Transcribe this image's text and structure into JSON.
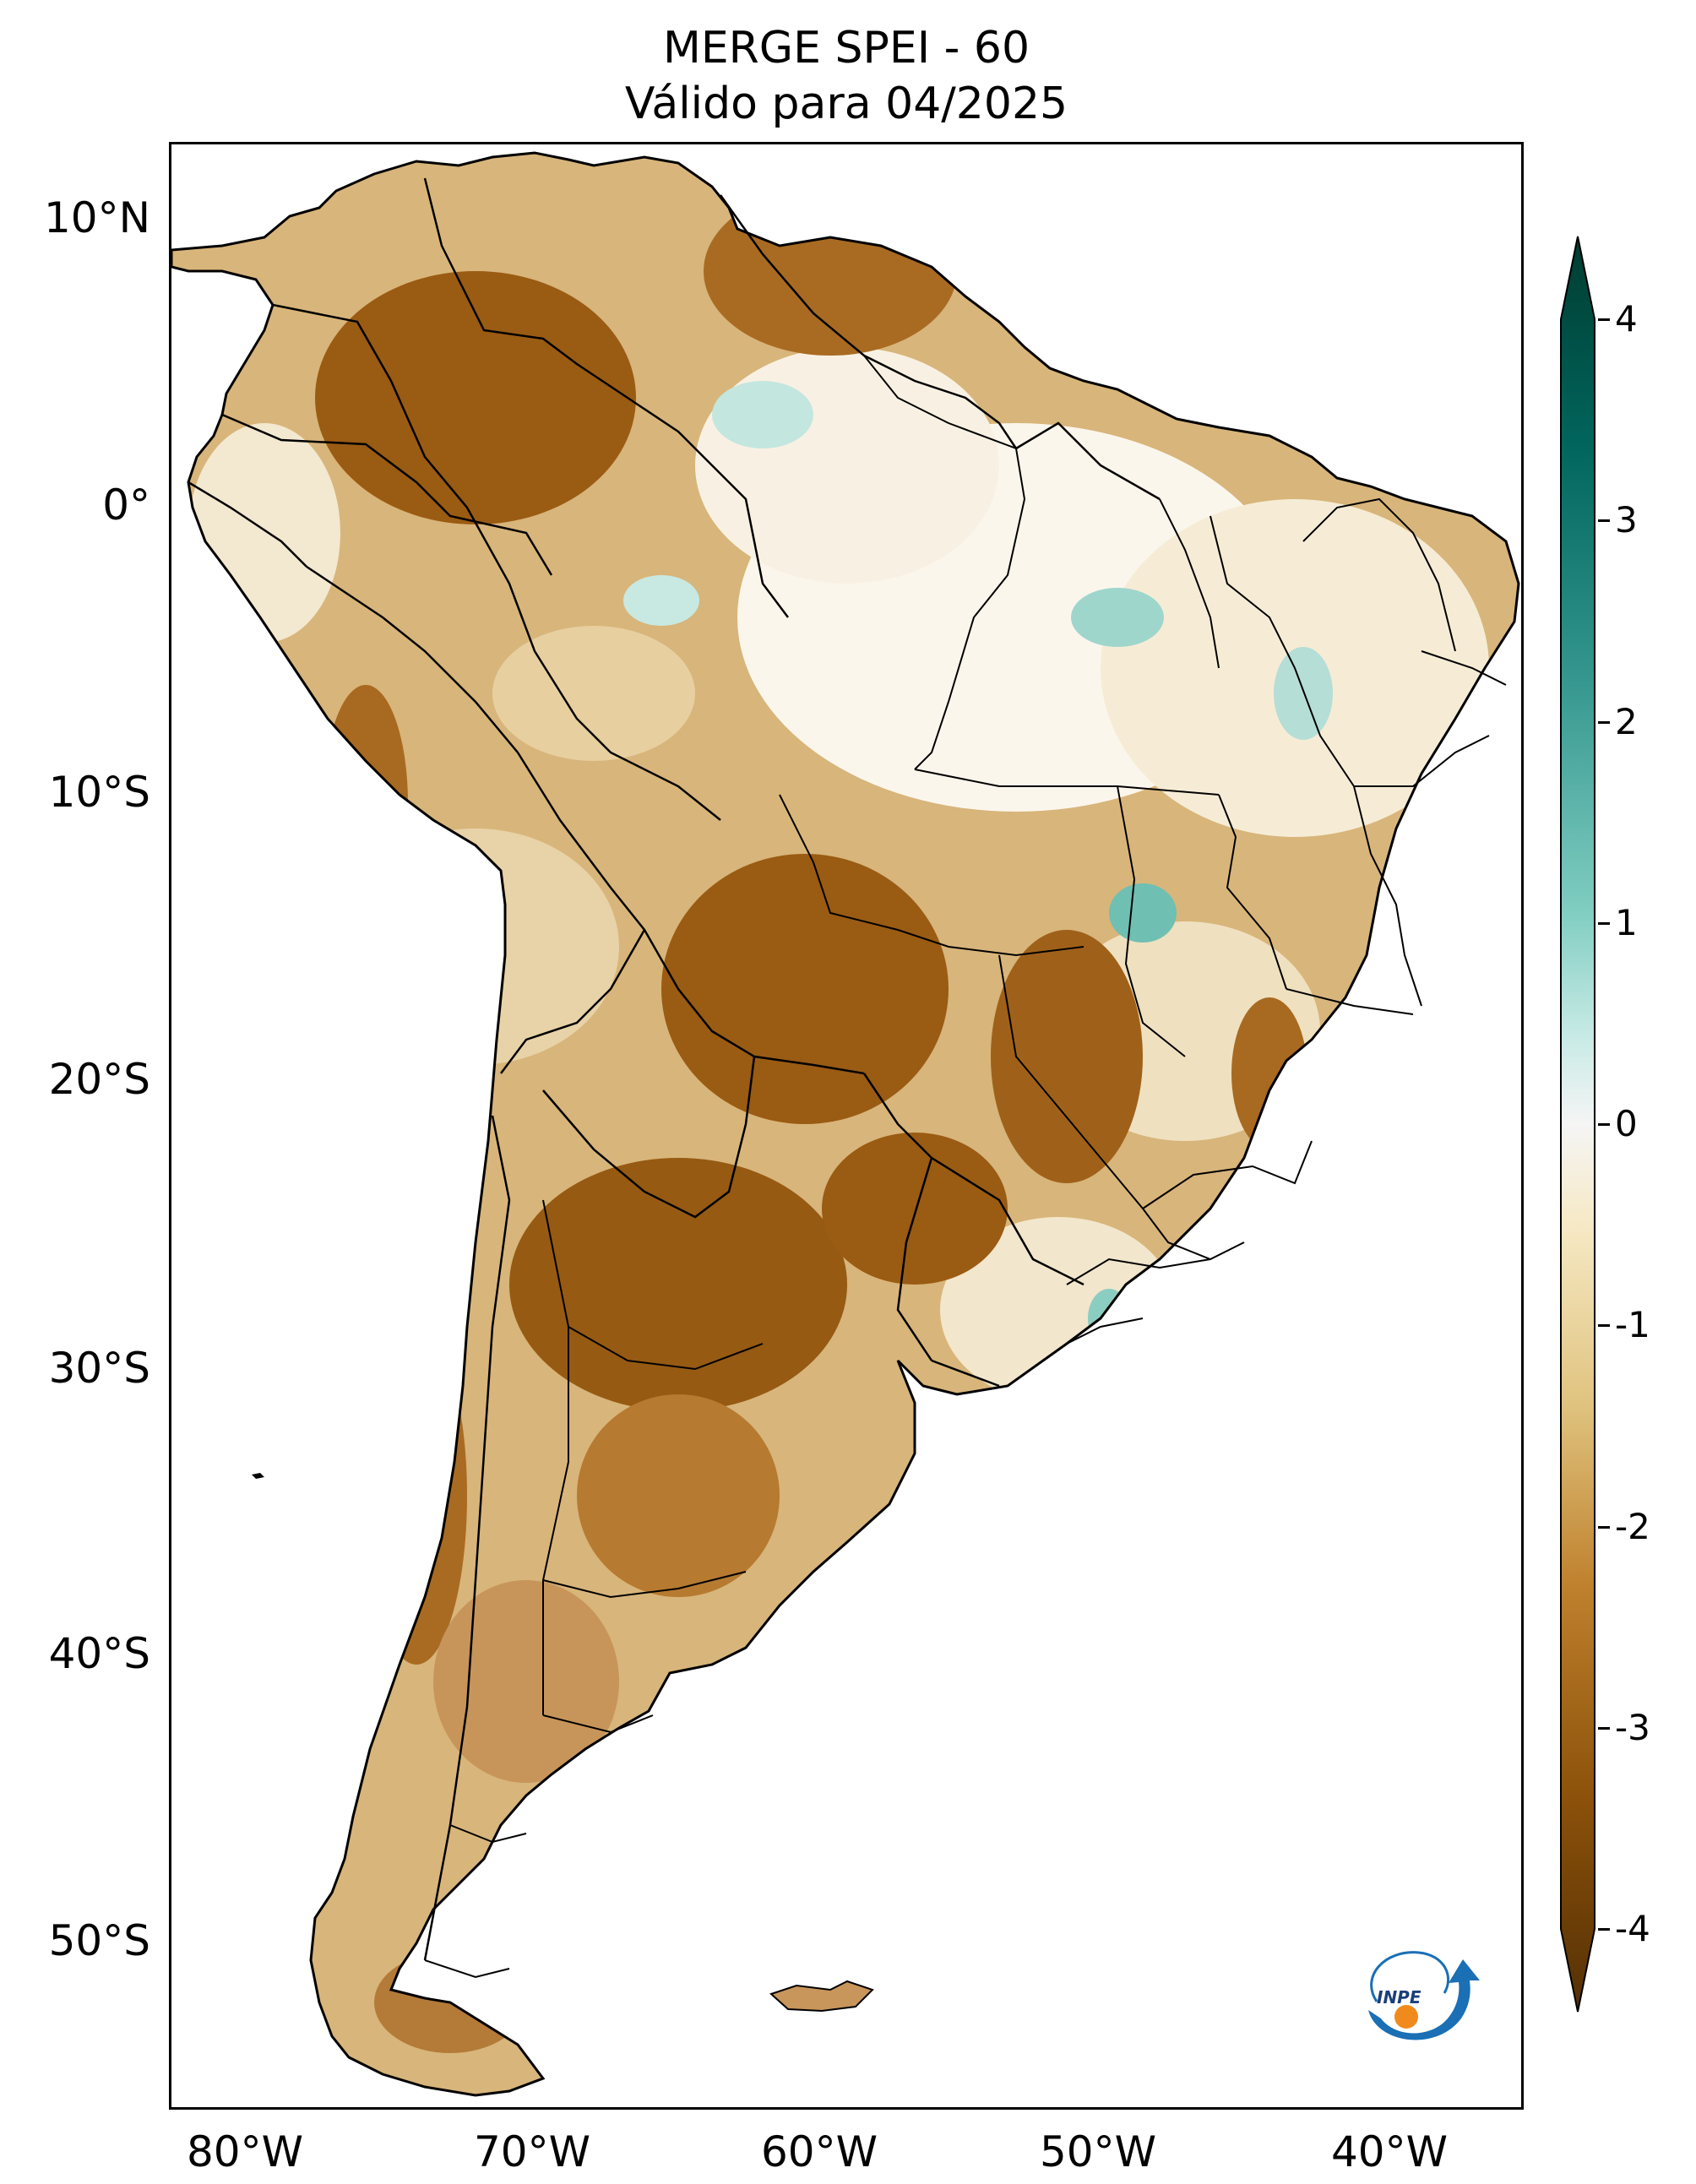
{
  "title": {
    "line1": "MERGE   SPEI - 60",
    "line2": "Válido para 04/2025"
  },
  "axes": {
    "lat_ticks": [
      "10°N",
      "0°",
      "10°S",
      "20°S",
      "30°S",
      "40°S",
      "50°S"
    ],
    "lon_ticks": [
      "80°W",
      "70°W",
      "60°W",
      "50°W",
      "40°W"
    ]
  },
  "colorbar": {
    "min": -4,
    "max": 4,
    "ticks": [
      "4",
      "3",
      "2",
      "1",
      "0",
      "-1",
      "-2",
      "-3",
      "-4"
    ],
    "colors_top_to_bottom": [
      "#003c30",
      "#01665e",
      "#35978f",
      "#80cdc1",
      "#c7eae5",
      "#f5f5f5",
      "#f6e8c3",
      "#dfc27d",
      "#bf812d",
      "#8c510a",
      "#543005"
    ]
  },
  "logo": {
    "text": "INPE",
    "icon": "inpe-logo-icon"
  },
  "map": {
    "region": "South America",
    "field_colors": {
      "very_dry": "#8c510a",
      "dry": "#bf812d",
      "moderate_dry": "#dfc27d",
      "near_normal": "#f6e8c3",
      "normal": "#ffffff",
      "wet": "#80cdc1",
      "very_wet": "#35978f"
    }
  }
}
